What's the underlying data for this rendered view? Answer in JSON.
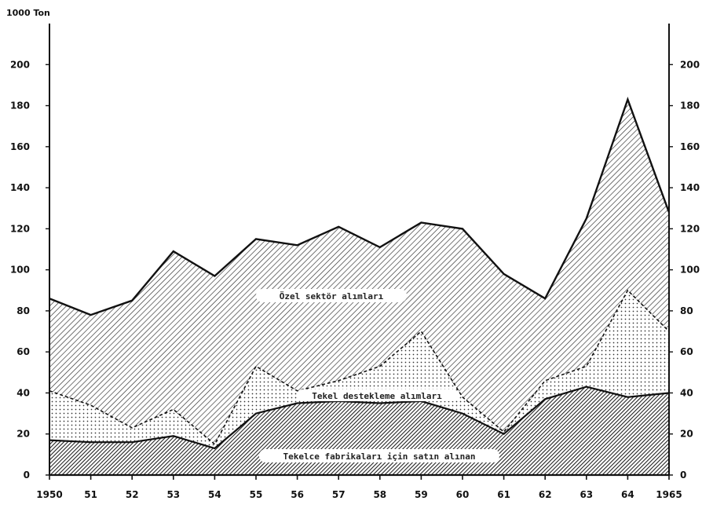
{
  "chart_data": {
    "type": "area",
    "stacked": true,
    "y_unit_label": "1000 Ton",
    "x": [
      1950,
      1951,
      1952,
      1953,
      1954,
      1955,
      1956,
      1957,
      1958,
      1959,
      1960,
      1961,
      1962,
      1963,
      1964,
      1965
    ],
    "x_tick_labels": [
      "1950",
      "51",
      "52",
      "53",
      "54",
      "55",
      "56",
      "57",
      "58",
      "59",
      "60",
      "61",
      "62",
      "63",
      "64",
      "1965"
    ],
    "ylim": [
      0,
      220
    ],
    "yticks_left": [
      0,
      20,
      40,
      60,
      80,
      100,
      120,
      140,
      160,
      180,
      200
    ],
    "yticks_right": [
      0,
      20,
      40,
      60,
      80,
      100,
      120,
      140,
      160,
      180,
      200
    ],
    "grid": false,
    "series": [
      {
        "name": "Tekelce fabrikaları için satın alınan",
        "values": [
          17,
          16,
          16,
          19,
          13,
          30,
          35,
          36,
          35,
          36,
          30,
          20,
          37,
          43,
          38,
          40
        ]
      },
      {
        "name": "Tekel destekleme alımları",
        "values": [
          24,
          18,
          7,
          13,
          2,
          23,
          6,
          10,
          18,
          34,
          8,
          1,
          9,
          10,
          52,
          30
        ]
      },
      {
        "name": "Özel sektör alımları",
        "values": [
          45,
          44,
          62,
          77,
          82,
          62,
          71,
          75,
          58,
          53,
          82,
          77,
          40,
          72,
          93,
          58
        ]
      }
    ],
    "colors": {
      "axis": "#111111",
      "ink": "#1a1a1a",
      "dots": "#333333"
    }
  }
}
